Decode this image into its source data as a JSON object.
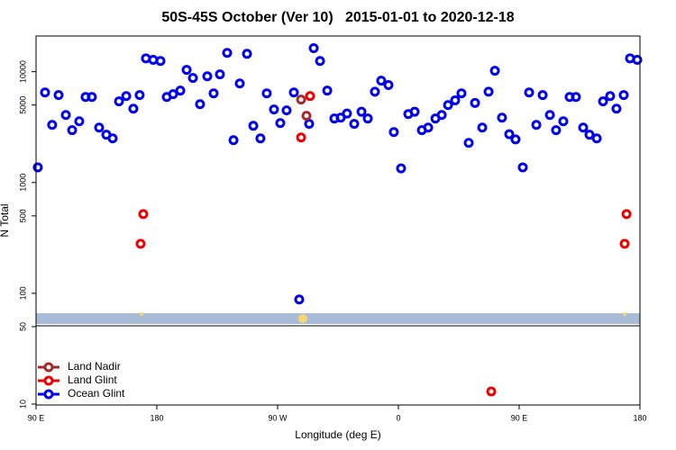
{
  "chart_data": {
    "type": "scatter",
    "title": "50S-45S October (Ver 10)   2015-01-01 to 2020-12-18",
    "xlabel": "Longitude (deg E)",
    "ylabel": "N Total",
    "log_y": true,
    "legend": "lower left",
    "xlim": [
      90,
      540
    ],
    "xticks": [
      {
        "value": 90,
        "label": "90 E"
      },
      180,
      {
        "value": 270,
        "label": "90 W"
      },
      {
        "value": 360,
        "label": "0"
      },
      {
        "value": 450,
        "label": "90 E"
      },
      {
        "value": 540,
        "label": "180"
      }
    ],
    "ylim": [
      10,
      21000
    ],
    "yticks": [
      10,
      50,
      100,
      500,
      1000,
      5000,
      10000
    ],
    "series": [
      {
        "name": "Land Nadir",
        "color": "#a52a2a",
        "x": [
          287.5,
          291.5
        ],
        "values": [
          5600,
          4000
        ]
      },
      {
        "name": "Land Glint",
        "color": "#ee0000",
        "x": [
          169.9,
          167.9,
          294.2,
          287.5,
          429.2,
          530,
          528.6
        ],
        "values": [
          519,
          280,
          6030,
          2550,
          13,
          519,
          280
        ]
      },
      {
        "name": "Ocean Glint",
        "color": "#0000ee",
        "x": [
          91.3,
          96.7,
          102,
          106.8,
          112.2,
          116.9,
          122.2,
          126.9,
          131.6,
          137,
          142.4,
          147.1,
          151.8,
          157.2,
          162.5,
          167.2,
          171.9,
          177.3,
          182.7,
          187.4,
          192.1,
          197.5,
          202.2,
          206.9,
          212.2,
          217.6,
          222.3,
          227,
          232.4,
          237.1,
          241.8,
          247.2,
          251.9,
          257.2,
          261.9,
          267.3,
          272,
          276.7,
          282.1,
          286.1,
          293.5,
          296.9,
          301.6,
          307,
          312.3,
          317,
          321.7,
          327.1,
          332.5,
          337.2,
          342.5,
          347.2,
          352.6,
          356.6,
          362,
          367.4,
          372.1,
          377.5,
          382.2,
          387.6,
          392.3,
          397,
          402.3,
          407,
          412.4,
          417.1,
          422.5,
          427.2,
          431.9,
          437.2,
          442.6,
          447.3,
          452.7,
          457.4,
          462.8,
          467.5,
          472.9,
          477.5,
          482.9,
          487.6,
          492.3,
          497.7,
          502.4,
          507.8,
          512.5,
          517.8,
          522.5,
          527.9,
          532.6,
          538
        ],
        "values": [
          1370,
          6500,
          3310,
          6150,
          4070,
          2970,
          3570,
          5910,
          5910,
          3130,
          2700,
          2500,
          5400,
          6030,
          4640,
          6150,
          13200,
          12800,
          12500,
          5910,
          6270,
          6750,
          10400,
          8780,
          5090,
          9100,
          6380,
          9460,
          14800,
          2410,
          7830,
          14500,
          3250,
          2500,
          6380,
          4560,
          3440,
          4480,
          6500,
          88,
          3380,
          16300,
          12500,
          6750,
          3780,
          3850,
          4190,
          3380,
          4350,
          3780,
          6600,
          8300,
          7580,
          2850,
          1340,
          4150,
          4350,
          2970,
          3130,
          3780,
          4070,
          5000,
          5520,
          6380,
          2280,
          5230,
          3130,
          6600,
          10200,
          3850,
          2730,
          2450,
          1370,
          6500,
          3310,
          6150,
          4070,
          2970,
          3570,
          5910,
          5910,
          3130,
          2700,
          2500,
          5400,
          6030,
          4640,
          6150,
          13200,
          12800
        ]
      }
    ]
  }
}
